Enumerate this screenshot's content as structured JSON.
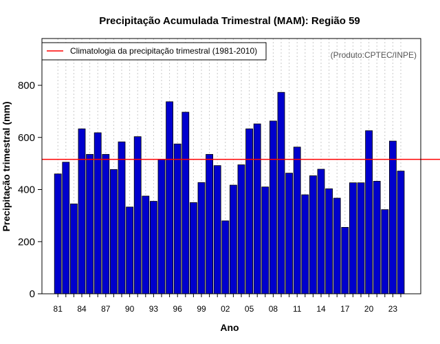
{
  "chart_data": {
    "type": "bar",
    "title": "Precipitação Acumulada Trimestral (MAM): Região 59",
    "xlabel": "Ano",
    "ylabel": "Precipitação trimestral (mm)",
    "ylim": [
      0,
      980
    ],
    "yticks": [
      0,
      200,
      400,
      600,
      800
    ],
    "years": [
      1981,
      1982,
      1983,
      1984,
      1985,
      1986,
      1987,
      1988,
      1989,
      1990,
      1991,
      1992,
      1993,
      1994,
      1995,
      1996,
      1997,
      1998,
      1999,
      2000,
      2001,
      2002,
      2003,
      2004,
      2005,
      2006,
      2007,
      2008,
      2009,
      2010,
      2011,
      2012,
      2013,
      2014,
      2015,
      2016,
      2017,
      2018,
      2019,
      2020,
      2021,
      2022,
      2023,
      2024
    ],
    "values": [
      460,
      505,
      345,
      633,
      535,
      618,
      535,
      477,
      583,
      333,
      603,
      375,
      355,
      516,
      737,
      575,
      697,
      350,
      427,
      535,
      492,
      280,
      417,
      495,
      633,
      652,
      410,
      663,
      773,
      463,
      563,
      380,
      453,
      478,
      403,
      367,
      255,
      426,
      426,
      626,
      432,
      323,
      586,
      471
    ],
    "xtick_labels": [
      "81",
      "84",
      "87",
      "90",
      "93",
      "96",
      "99",
      "02",
      "05",
      "08",
      "11",
      "14",
      "17",
      "20",
      "23"
    ],
    "xtick_years": [
      1981,
      1984,
      1987,
      1990,
      1993,
      1996,
      1999,
      2002,
      2005,
      2008,
      2011,
      2014,
      2017,
      2020,
      2023
    ],
    "climatology": 516,
    "bar_color": "#0000CD",
    "climatology_color": "#FF0000",
    "legend": {
      "label": "Climatologia da precipitação trimestral (1981-2010)",
      "placement": "top-left"
    },
    "source_note": "(Produto:CPTEC/INPE)",
    "grid": "vertical dotted"
  }
}
